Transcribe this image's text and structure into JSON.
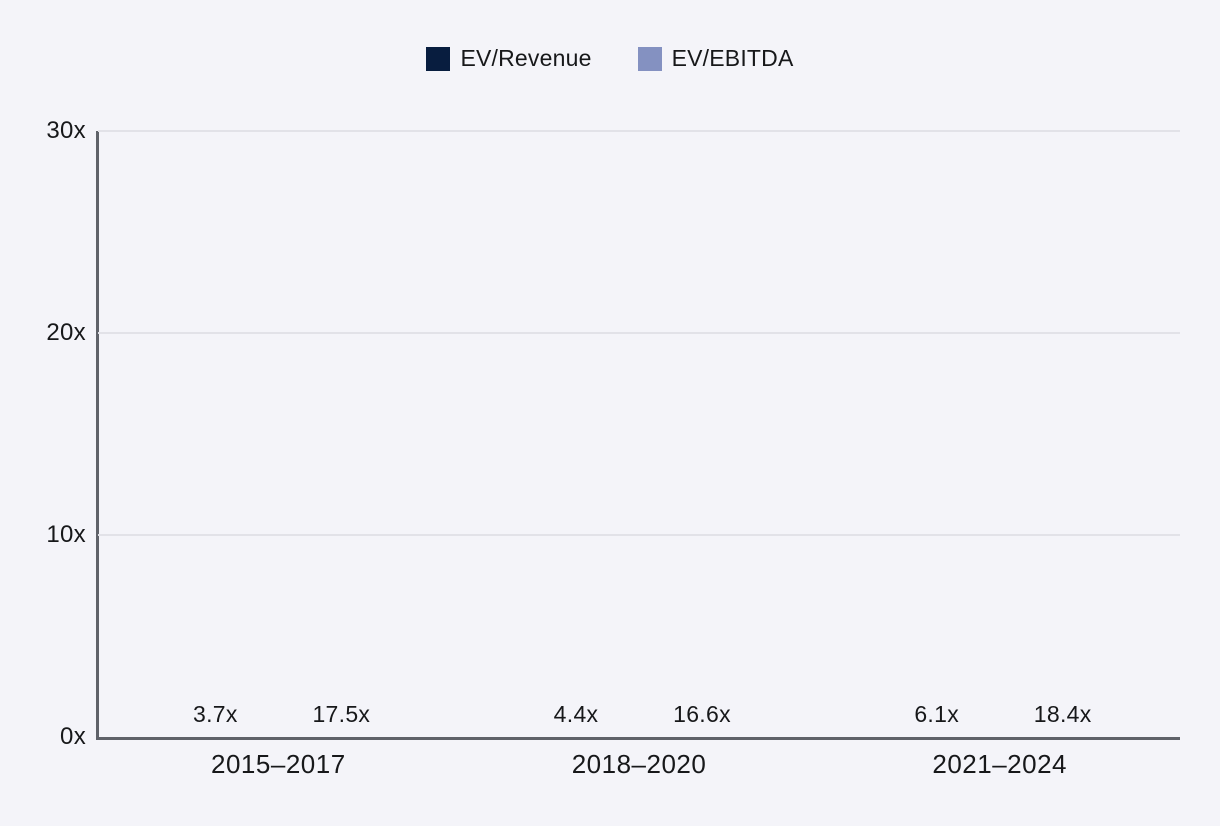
{
  "colors": {
    "background": "#f4f4f9",
    "gridline": "#e2e2e8",
    "axis": "#5f6269",
    "text": "#17181a",
    "series_ev_revenue": "#081d3f",
    "series_ev_ebitda": "#8491c1"
  },
  "chart_data": {
    "type": "bar",
    "title": "",
    "categories": [
      "2015–2017",
      "2018–2020",
      "2021–2024"
    ],
    "series": [
      {
        "name": "EV/Revenue",
        "color": "#081d3f",
        "values": [
          3.7,
          4.4,
          6.1
        ],
        "labels": [
          "3.7x",
          "4.4x",
          "6.1x"
        ]
      },
      {
        "name": "EV/EBITDA",
        "color": "#8491c1",
        "values": [
          17.5,
          16.6,
          18.4
        ],
        "labels": [
          "17.5x",
          "16.6x",
          "18.4x"
        ]
      }
    ],
    "xlabel": "",
    "ylabel": "",
    "ylim": [
      0,
      30
    ],
    "yticks": [
      0,
      10,
      20,
      30
    ],
    "ytick_labels": [
      "0x",
      "10x",
      "20x",
      "30x"
    ],
    "grid": true,
    "legend_position": "top",
    "value_suffix": "x"
  }
}
